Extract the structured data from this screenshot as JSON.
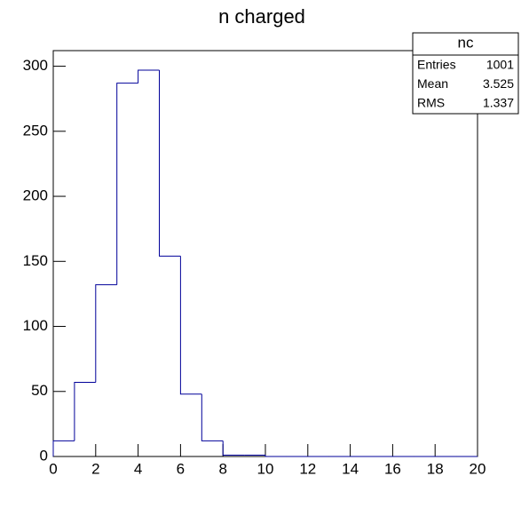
{
  "chart_data": {
    "type": "histogram",
    "title": "n charged",
    "bins": [
      0,
      1,
      2,
      3,
      4,
      5,
      6,
      7,
      8,
      9,
      10,
      11,
      12,
      13,
      14,
      15,
      16,
      17,
      18,
      19,
      20
    ],
    "counts": [
      12,
      57,
      132,
      287,
      297,
      154,
      48,
      12,
      1,
      1,
      0,
      0,
      0,
      0,
      0,
      0,
      0,
      0,
      0,
      0
    ],
    "color": "#000099",
    "xlim": [
      0,
      20
    ],
    "xticks": [
      0,
      2,
      4,
      6,
      8,
      10,
      12,
      14,
      16,
      18,
      20
    ],
    "ylim": [
      0,
      312
    ],
    "yticks": [
      0,
      50,
      100,
      150,
      200,
      250,
      300
    ],
    "stats": {
      "title": "nc",
      "rows": [
        [
          "Entries",
          "1001"
        ],
        [
          "Mean",
          "3.525"
        ],
        [
          "RMS",
          "1.337"
        ]
      ]
    }
  }
}
